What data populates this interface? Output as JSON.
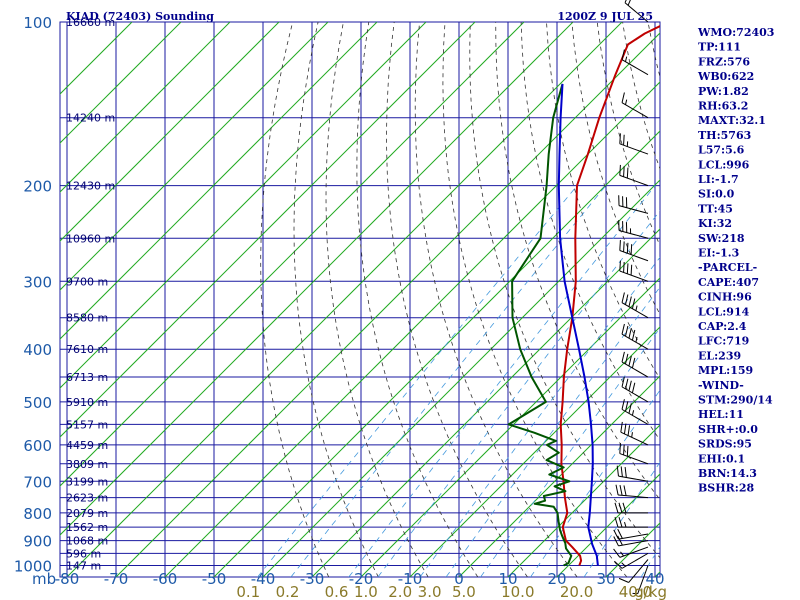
{
  "header": {
    "station": "KIAD (72403) Sounding",
    "time": "1200Z  9 JUL 25"
  },
  "indices": [
    "WMO:72403",
    "TP:111",
    "FRZ:576",
    "WB0:622",
    "PW:1.82",
    "RH:63.2",
    "MAXT:32.1",
    "TH:5763",
    "L57:5.6",
    "LCL:996",
    "LI:-1.7",
    "SI:0.0",
    "TT:45",
    "KI:32",
    "SW:218",
    "EI:-1.3",
    "-PARCEL-",
    "CAPE:407",
    "CINH:96",
    "LCL:914",
    "CAP:2.4",
    "LFC:719",
    "EL:239",
    "MPL:159",
    "-WIND-",
    "STM:290/14",
    "HEL:11",
    "SHR+:0.0",
    "SRDS:95",
    "EHI:0.1",
    "BRN:14.3",
    "BSHR:28"
  ],
  "colors": {
    "grid": "#1a1aa0",
    "isotherm_skew": "#22aa22",
    "dry_adiabat": "#333333",
    "mixing_ratio": "#4499dd",
    "temperature": "#c00000",
    "dewpoint": "#005500",
    "parcel": "#0000cc",
    "wind": "#000000",
    "axis_label": "#1e5aa8",
    "mixing_label": "#8a7a2a",
    "text": "#00008b"
  },
  "chart_data": {
    "type": "line",
    "title": "KIAD (72403) Sounding",
    "xlabel": "",
    "ylabel": "mb",
    "xlim": [
      -80,
      40
    ],
    "ylim": [
      1000,
      100
    ],
    "y_scale": "log",
    "x_ticks": [
      -80,
      -70,
      -60,
      -50,
      -40,
      -30,
      -20,
      -10,
      0,
      10,
      20,
      30,
      40
    ],
    "y_ticks": [
      100,
      200,
      300,
      400,
      500,
      600,
      700,
      800,
      900,
      1000
    ],
    "y_tick_labels": [
      "100",
      "200",
      "300",
      "400",
      "500",
      "600",
      "700",
      "800",
      "900",
      "1000"
    ],
    "x_tick_labels": [
      "-80",
      "-70",
      "-60",
      "-50",
      "-40",
      "-30",
      "-20",
      "-10",
      "0",
      "10",
      "20",
      "30",
      "40"
    ],
    "y_axis_unit": "mb",
    "height_labels": [
      {
        "p": 100,
        "label": "16660 m"
      },
      {
        "p": 150,
        "label": "14240 m"
      },
      {
        "p": 200,
        "label": "12430 m"
      },
      {
        "p": 250,
        "label": "10960 m"
      },
      {
        "p": 300,
        "label": "9700 m"
      },
      {
        "p": 350,
        "label": "8580 m"
      },
      {
        "p": 400,
        "label": "7610 m"
      },
      {
        "p": 450,
        "label": "6713 m"
      },
      {
        "p": 500,
        "label": "5910 m"
      },
      {
        "p": 550,
        "label": "5157 m"
      },
      {
        "p": 600,
        "label": "4459 m"
      },
      {
        "p": 650,
        "label": "3809 m"
      },
      {
        "p": 700,
        "label": "3199 m"
      },
      {
        "p": 750,
        "label": "2623 m"
      },
      {
        "p": 800,
        "label": "2079 m"
      },
      {
        "p": 850,
        "label": "1562 m"
      },
      {
        "p": 900,
        "label": "1068 m"
      },
      {
        "p": 950,
        "label": "596 m"
      },
      {
        "p": 1000,
        "label": "147 m"
      }
    ],
    "mixing_ratio_labels": [
      {
        "value": "0.1",
        "t_at_bottom": -43
      },
      {
        "value": "0.2",
        "t_at_bottom": -35
      },
      {
        "value": "0.6",
        "t_at_bottom": -25
      },
      {
        "value": "1.0",
        "t_at_bottom": -19
      },
      {
        "value": "2.0",
        "t_at_bottom": -12
      },
      {
        "value": "3.0",
        "t_at_bottom": -6
      },
      {
        "value": "5.0",
        "t_at_bottom": 1
      },
      {
        "value": "10.0",
        "t_at_bottom": 12
      },
      {
        "value": "20.0",
        "t_at_bottom": 24
      },
      {
        "value": "40.0",
        "t_at_bottom": 36
      }
    ],
    "mixing_unit": "g/kg",
    "series": [
      {
        "name": "temperature",
        "points": [
          [
            1000,
            22.2
          ],
          [
            980,
            21.6
          ],
          [
            960,
            20.4
          ],
          [
            925,
            17.0
          ],
          [
            900,
            14.4
          ],
          [
            850,
            11.0
          ],
          [
            800,
            9.0
          ],
          [
            750,
            5.4
          ],
          [
            700,
            1.8
          ],
          [
            650,
            -2.2
          ],
          [
            600,
            -6.0
          ],
          [
            550,
            -10.4
          ],
          [
            500,
            -14.6
          ],
          [
            450,
            -19.4
          ],
          [
            400,
            -24.4
          ],
          [
            350,
            -29.8
          ],
          [
            300,
            -36.5
          ],
          [
            250,
            -45.4
          ],
          [
            200,
            -55.8
          ],
          [
            175,
            -60.0
          ],
          [
            150,
            -65.1
          ],
          [
            125,
            -70.6
          ],
          [
            110,
            -74.2
          ],
          [
            105,
            -73.0
          ],
          [
            100,
            -70.5
          ]
        ]
      },
      {
        "name": "dewpoint",
        "points": [
          [
            1000,
            19.0
          ],
          [
            990,
            19.5
          ],
          [
            960,
            18.6
          ],
          [
            930,
            16.0
          ],
          [
            910,
            14.8
          ],
          [
            880,
            12.5
          ],
          [
            860,
            11.0
          ],
          [
            830,
            9.0
          ],
          [
            800,
            7.0
          ],
          [
            780,
            5.0
          ],
          [
            770,
            0.5
          ],
          [
            760,
            2.0
          ],
          [
            745,
            0.8
          ],
          [
            730,
            4.2
          ],
          [
            715,
            1.0
          ],
          [
            700,
            3.0
          ],
          [
            680,
            -2.5
          ],
          [
            660,
            -1.0
          ],
          [
            640,
            -6.0
          ],
          [
            620,
            -5.0
          ],
          [
            600,
            -9.0
          ],
          [
            590,
            -8.0
          ],
          [
            570,
            -14.0
          ],
          [
            550,
            -21.0
          ],
          [
            500,
            -18.0
          ],
          [
            450,
            -26.0
          ],
          [
            400,
            -34.0
          ],
          [
            350,
            -42.0
          ],
          [
            300,
            -49.5
          ],
          [
            250,
            -52.5
          ],
          [
            200,
            -62.0
          ],
          [
            175,
            -68.0
          ],
          [
            150,
            -74.5
          ],
          [
            130,
            -79.5
          ]
        ]
      },
      {
        "name": "parcel",
        "points": [
          [
            1000,
            26.0
          ],
          [
            960,
            23.8
          ],
          [
            914,
            20.5
          ],
          [
            850,
            16.2
          ],
          [
            800,
            13.6
          ],
          [
            750,
            10.7
          ],
          [
            700,
            7.6
          ],
          [
            650,
            4.2
          ],
          [
            600,
            0.3
          ],
          [
            550,
            -4.2
          ],
          [
            500,
            -9.3
          ],
          [
            450,
            -15.2
          ],
          [
            400,
            -22.0
          ],
          [
            350,
            -29.8
          ],
          [
            300,
            -38.8
          ],
          [
            250,
            -48.5
          ],
          [
            200,
            -59.5
          ],
          [
            175,
            -65.8
          ],
          [
            150,
            -73.0
          ],
          [
            130,
            -79.5
          ]
        ]
      }
    ],
    "wind_barbs": [
      {
        "p": 1000,
        "dir": 200,
        "spd": 5
      },
      {
        "p": 975,
        "dir": 220,
        "spd": 10
      },
      {
        "p": 950,
        "dir": 240,
        "spd": 15
      },
      {
        "p": 925,
        "dir": 250,
        "spd": 15
      },
      {
        "p": 900,
        "dir": 260,
        "spd": 20
      },
      {
        "p": 875,
        "dir": 260,
        "spd": 20
      },
      {
        "p": 850,
        "dir": 270,
        "spd": 25
      },
      {
        "p": 800,
        "dir": 270,
        "spd": 30
      },
      {
        "p": 750,
        "dir": 275,
        "spd": 30
      },
      {
        "p": 700,
        "dir": 280,
        "spd": 30
      },
      {
        "p": 650,
        "dir": 290,
        "spd": 30
      },
      {
        "p": 600,
        "dir": 295,
        "spd": 35
      },
      {
        "p": 550,
        "dir": 300,
        "spd": 35
      },
      {
        "p": 500,
        "dir": 300,
        "spd": 40
      },
      {
        "p": 450,
        "dir": 300,
        "spd": 40
      },
      {
        "p": 400,
        "dir": 300,
        "spd": 45
      },
      {
        "p": 350,
        "dir": 300,
        "spd": 45
      },
      {
        "p": 300,
        "dir": 290,
        "spd": 40
      },
      {
        "p": 275,
        "dir": 290,
        "spd": 40
      },
      {
        "p": 250,
        "dir": 285,
        "spd": 35
      },
      {
        "p": 225,
        "dir": 285,
        "spd": 30
      },
      {
        "p": 200,
        "dir": 290,
        "spd": 30
      },
      {
        "p": 175,
        "dir": 290,
        "spd": 25
      },
      {
        "p": 150,
        "dir": 300,
        "spd": 15
      },
      {
        "p": 125,
        "dir": 300,
        "spd": 15
      },
      {
        "p": 100,
        "dir": 310,
        "spd": 20
      }
    ],
    "grid": true,
    "legend": "none"
  }
}
